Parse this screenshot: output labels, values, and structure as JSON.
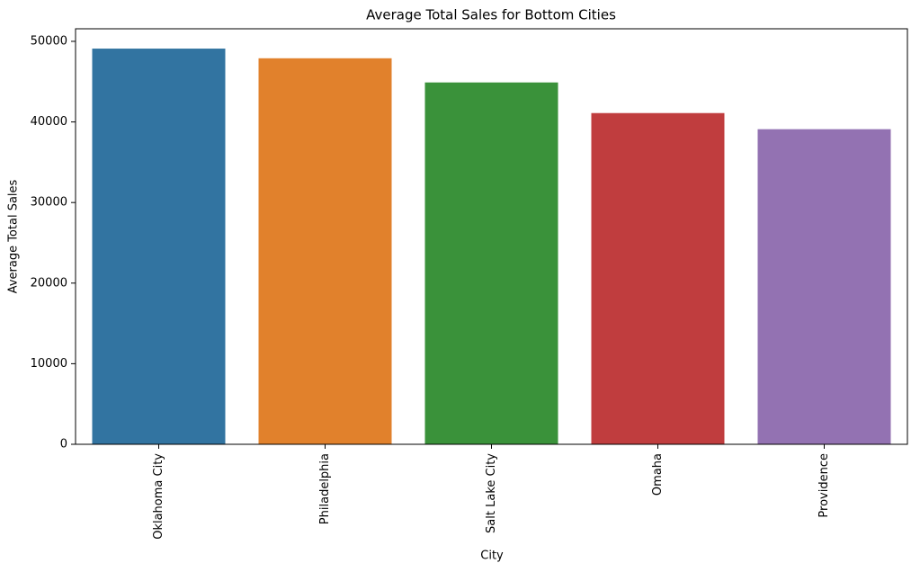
{
  "chart_data": {
    "type": "bar",
    "title": "Average Total Sales for Bottom Cities",
    "x_label": "City",
    "y_label": "Average Total Sales",
    "categories": [
      "Oklahoma City",
      "Philadelphia",
      "Salt Lake City",
      "Omaha",
      "Providence"
    ],
    "values": [
      49100,
      47900,
      44900,
      41100,
      39100
    ],
    "colors": [
      "#3274a1",
      "#e1812c",
      "#3a923a",
      "#c03d3e",
      "#9372b2"
    ],
    "ylim": [
      0,
      51560
    ],
    "yticks": [
      0,
      10000,
      20000,
      30000,
      40000,
      50000
    ],
    "grid": false
  }
}
